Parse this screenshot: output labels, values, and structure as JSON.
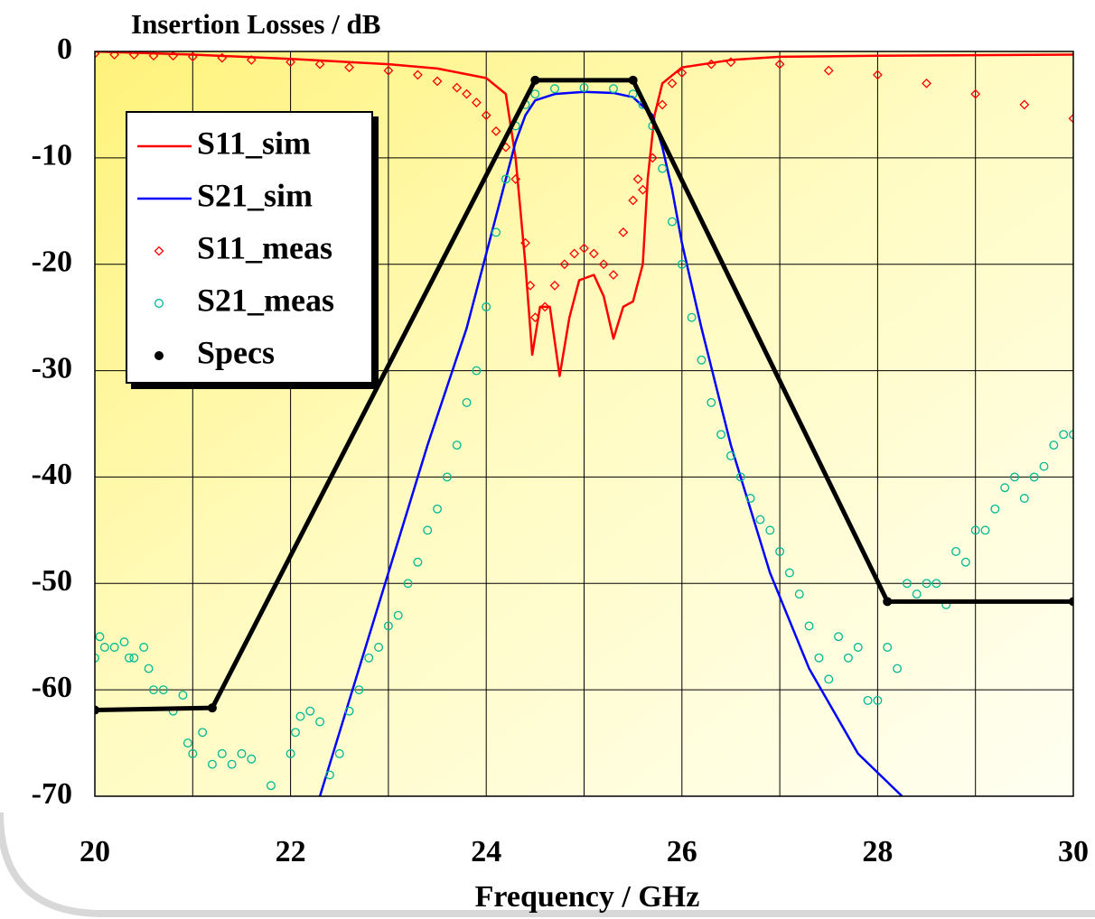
{
  "chart_data": {
    "type": "line",
    "title": "Insertion Losses / dB",
    "x_label": "Frequency / GHz",
    "xlim": [
      20,
      30
    ],
    "xticks": [
      20,
      22,
      24,
      26,
      28,
      30
    ],
    "xminor_ticks": [
      21,
      23,
      25,
      27,
      29
    ],
    "ylim": [
      -70,
      0
    ],
    "yticks": [
      0,
      -10,
      -20,
      -30,
      -40,
      -50,
      -60,
      -70
    ],
    "grid": true,
    "legend": "upper left",
    "series": [
      {
        "name": "S11_sim",
        "color": "#ff0000",
        "mode": "line",
        "x": [
          20,
          21,
          22,
          23,
          23.5,
          24,
          24.2,
          24.3,
          24.4,
          24.47,
          24.55,
          24.65,
          24.75,
          24.85,
          24.95,
          25.1,
          25.2,
          25.3,
          25.4,
          25.5,
          25.6,
          25.65,
          25.72,
          25.8,
          26,
          26.5,
          27,
          28,
          30
        ],
        "values": [
          0,
          -0.3,
          -0.7,
          -1.2,
          -1.6,
          -2.5,
          -4,
          -10,
          -20,
          -28.5,
          -24,
          -24,
          -30.5,
          -25,
          -21.5,
          -21,
          -23,
          -27,
          -24,
          -23.5,
          -20,
          -12,
          -6,
          -3,
          -1.5,
          -0.8,
          -0.5,
          -0.4,
          -0.3
        ]
      },
      {
        "name": "S21_sim",
        "color": "#0000ff",
        "mode": "line",
        "x": [
          22.3,
          22.6,
          23,
          23.4,
          23.8,
          24,
          24.2,
          24.3,
          24.4,
          24.5,
          24.7,
          25,
          25.3,
          25.5,
          25.7,
          25.8,
          25.9,
          26,
          26.2,
          26.5,
          26.9,
          27.3,
          27.8,
          28.25
        ],
        "values": [
          -70,
          -61,
          -49,
          -37,
          -26,
          -19,
          -12,
          -8.5,
          -6,
          -4.6,
          -4,
          -3.8,
          -3.9,
          -4.3,
          -6,
          -9,
          -13,
          -18,
          -26,
          -37,
          -49,
          -58,
          -66,
          -70
        ]
      },
      {
        "name": "S11_meas",
        "color": "#ff0000",
        "mode": "markers",
        "marker": "diamond",
        "x": [
          20,
          20.2,
          20.4,
          20.6,
          20.8,
          21,
          21.3,
          21.6,
          22,
          22.3,
          22.6,
          23,
          23.3,
          23.5,
          23.7,
          23.8,
          23.9,
          24,
          24.1,
          24.2,
          24.3,
          24.4,
          24.45,
          24.5,
          24.6,
          24.7,
          24.8,
          24.9,
          25,
          25.1,
          25.2,
          25.3,
          25.4,
          25.5,
          25.55,
          25.6,
          25.7,
          25.8,
          25.9,
          26,
          26.3,
          26.5,
          27,
          27.5,
          28,
          28.5,
          29,
          29.5,
          30
        ],
        "values": [
          -0.2,
          -0.3,
          -0.3,
          -0.4,
          -0.4,
          -0.5,
          -0.6,
          -0.8,
          -1,
          -1.2,
          -1.5,
          -1.8,
          -2.2,
          -2.8,
          -3.4,
          -4,
          -4.8,
          -6,
          -7.5,
          -9,
          -12,
          -18,
          -22,
          -25,
          -24,
          -22,
          -20,
          -19,
          -18.5,
          -19,
          -20,
          -21,
          -17,
          -14,
          -12,
          -13,
          -10,
          -5,
          -3,
          -2,
          -1.2,
          -1,
          -1.2,
          -1.8,
          -2.2,
          -3,
          -4,
          -5,
          -6.3
        ]
      },
      {
        "name": "S21_meas",
        "color": "#00b894",
        "mode": "markers",
        "marker": "circle",
        "x": [
          20,
          20.05,
          20.1,
          20.2,
          20.3,
          20.35,
          20.4,
          20.5,
          20.55,
          20.6,
          20.7,
          20.8,
          20.9,
          20.95,
          21,
          21.1,
          21.2,
          21.3,
          21.4,
          21.5,
          21.6,
          21.8,
          22,
          22.05,
          22.1,
          22.2,
          22.3,
          22.4,
          22.5,
          22.6,
          22.7,
          22.8,
          22.9,
          23,
          23.1,
          23.2,
          23.3,
          23.4,
          23.5,
          23.6,
          23.7,
          23.8,
          23.9,
          24,
          24.1,
          24.2,
          24.3,
          24.4,
          24.5,
          24.7,
          25,
          25.3,
          25.5,
          25.6,
          25.7,
          25.8,
          25.9,
          26,
          26.1,
          26.2,
          26.3,
          26.4,
          26.5,
          26.6,
          26.7,
          26.8,
          26.9,
          27,
          27.1,
          27.2,
          27.3,
          27.4,
          27.5,
          27.6,
          27.7,
          27.8,
          27.9,
          28,
          28.1,
          28.2,
          28.3,
          28.4,
          28.5,
          28.6,
          28.7,
          28.8,
          28.9,
          29,
          29.1,
          29.2,
          29.3,
          29.4,
          29.5,
          29.6,
          29.7,
          29.8,
          29.9,
          30
        ],
        "values": [
          -57,
          -55,
          -56,
          -56,
          -55.5,
          -57,
          -57,
          -56,
          -58,
          -60,
          -60,
          -62,
          -60.5,
          -65,
          -66,
          -64,
          -67,
          -66,
          -67,
          -66,
          -66.5,
          -69,
          -66,
          -64,
          -62.5,
          -62,
          -63,
          -68,
          -66,
          -62,
          -60,
          -57,
          -56,
          -54,
          -53,
          -50,
          -48,
          -45,
          -43,
          -40,
          -37,
          -33,
          -30,
          -24,
          -17,
          -12,
          -7,
          -5,
          -4,
          -3.5,
          -3.4,
          -3.5,
          -4,
          -5,
          -7,
          -11,
          -16,
          -20,
          -25,
          -29,
          -33,
          -36,
          -38,
          -40,
          -42,
          -44,
          -45,
          -47,
          -49,
          -51,
          -54,
          -57,
          -59,
          -55,
          -57,
          -56,
          -61,
          -61,
          -56,
          -58,
          -50,
          -51,
          -50,
          -50,
          -52,
          -47,
          -48,
          -45,
          -45,
          -43,
          -41,
          -40,
          -42,
          -40,
          -39,
          -37,
          -36,
          -36
        ]
      },
      {
        "name": "Specs",
        "color": "#000000",
        "mode": "line+markers",
        "marker": "dot",
        "x": [
          20,
          21.2,
          24.5,
          25.5,
          28.1,
          30
        ],
        "values": [
          -61.9,
          -61.7,
          -2.7,
          -2.7,
          -51.7,
          -51.7
        ]
      }
    ]
  }
}
